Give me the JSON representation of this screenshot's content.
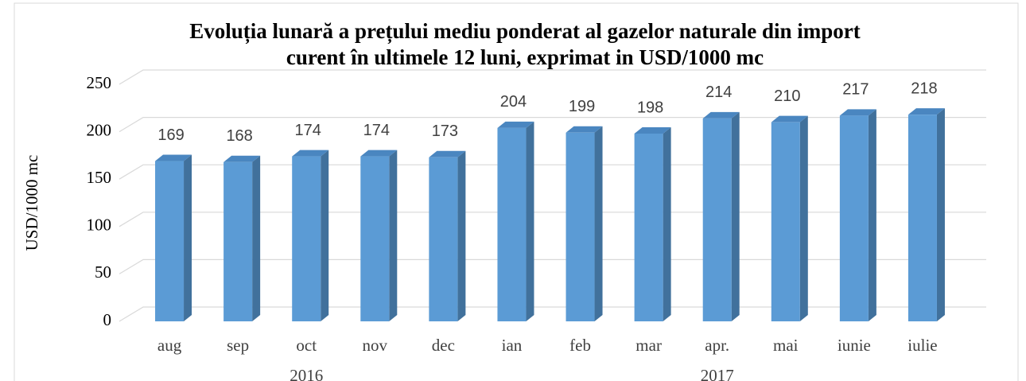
{
  "chart_data": {
    "type": "bar3d",
    "title": "Evoluția lunară a prețului mediu ponderat al gazelor naturale din import",
    "subtitle": "curent în ultimele 12 luni, exprimat in USD/1000 mc",
    "y_label": "USD/1000 mc",
    "categories": [
      "aug",
      "sep",
      "oct",
      "nov",
      "dec",
      "ian",
      "feb",
      "mar",
      "apr.",
      "mai",
      "iunie",
      "iulie"
    ],
    "groups": [
      {
        "label": "2016",
        "count": 5
      },
      {
        "label": "2017",
        "count": 7
      }
    ],
    "values": [
      169,
      168,
      174,
      174,
      173,
      204,
      199,
      198,
      214,
      210,
      217,
      218
    ],
    "color": "#5b9bd5",
    "ylim": [
      0,
      250
    ],
    "yticks": [
      0,
      50,
      100,
      150,
      200,
      250
    ],
    "grid": true
  }
}
